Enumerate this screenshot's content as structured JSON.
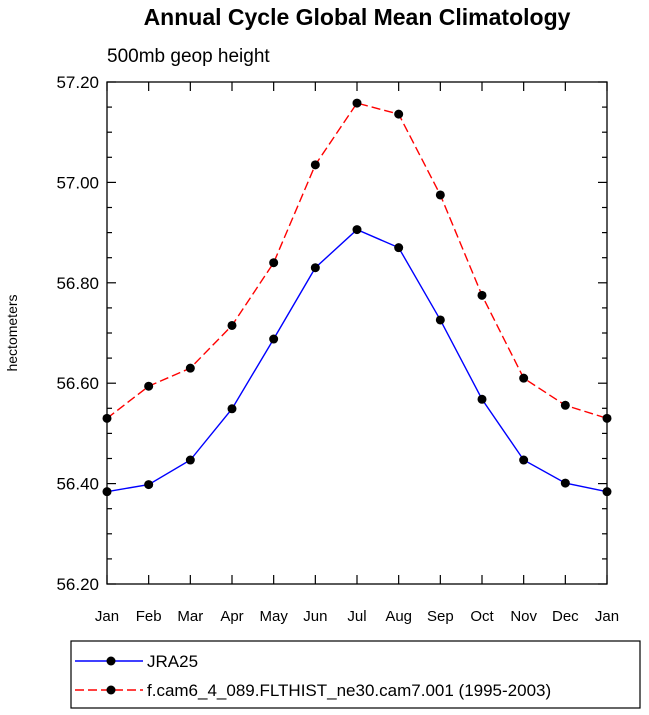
{
  "chart_data": {
    "type": "line",
    "title": "Annual Cycle Global Mean Climatology",
    "subtitle": "500mb geop height",
    "xlabel": "",
    "ylabel": "hectometers",
    "categories": [
      "Jan",
      "Feb",
      "Mar",
      "Apr",
      "May",
      "Jun",
      "Jul",
      "Aug",
      "Sep",
      "Oct",
      "Nov",
      "Dec",
      "Jan"
    ],
    "ylim": [
      56.2,
      57.2
    ],
    "yticks": [
      "56.20",
      "56.40",
      "56.60",
      "56.80",
      "57.00",
      "57.20"
    ],
    "legend_position": "bottom",
    "series": [
      {
        "name": "JRA25",
        "color": "#0000ff",
        "line_style": "solid",
        "marker": "filled-circle",
        "values": [
          56.384,
          56.398,
          56.447,
          56.549,
          56.688,
          56.83,
          56.906,
          56.87,
          56.726,
          56.568,
          56.447,
          56.401,
          56.384
        ]
      },
      {
        "name": "f.cam6_4_089.FLTHIST_ne30.cam7.001 (1995-2003)",
        "color": "#ff0000",
        "line_style": "dashed",
        "marker": "filled-circle",
        "values": [
          56.53,
          56.594,
          56.63,
          56.715,
          56.84,
          57.035,
          57.158,
          57.136,
          56.975,
          56.775,
          56.61,
          56.556,
          56.53
        ]
      }
    ]
  }
}
